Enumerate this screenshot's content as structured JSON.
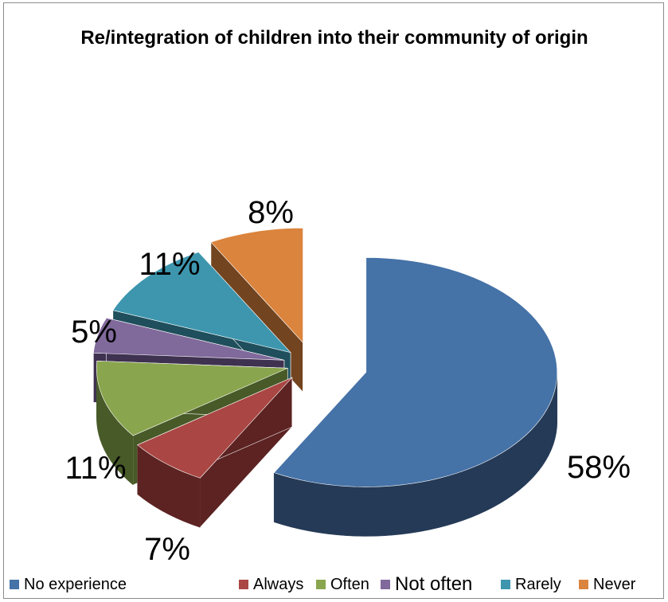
{
  "chart_data": {
    "type": "pie",
    "style": "3d-exploded",
    "title": "Re/integration of children into their community of origin",
    "slices": [
      {
        "name": "No experience",
        "value": 58,
        "label": "58%",
        "color": "#4572A7",
        "side_color": "#253A57"
      },
      {
        "name": "Always",
        "value": 7,
        "label": "7%",
        "color": "#AA4643",
        "side_color": "#5C2322"
      },
      {
        "name": "Often",
        "value": 11,
        "label": "11%",
        "color": "#89A54E",
        "side_color": "#485A28"
      },
      {
        "name": "Not often",
        "value": 5,
        "label": "5%",
        "color": "#80699B",
        "side_color": "#3F3250"
      },
      {
        "name": "Rarely",
        "value": 11,
        "label": "11%",
        "color": "#3D96AE",
        "side_color": "#1F4F5C"
      },
      {
        "name": "Never",
        "value": 8,
        "label": "8%",
        "color": "#DB843D",
        "side_color": "#724420"
      }
    ],
    "legend_position": "bottom"
  }
}
